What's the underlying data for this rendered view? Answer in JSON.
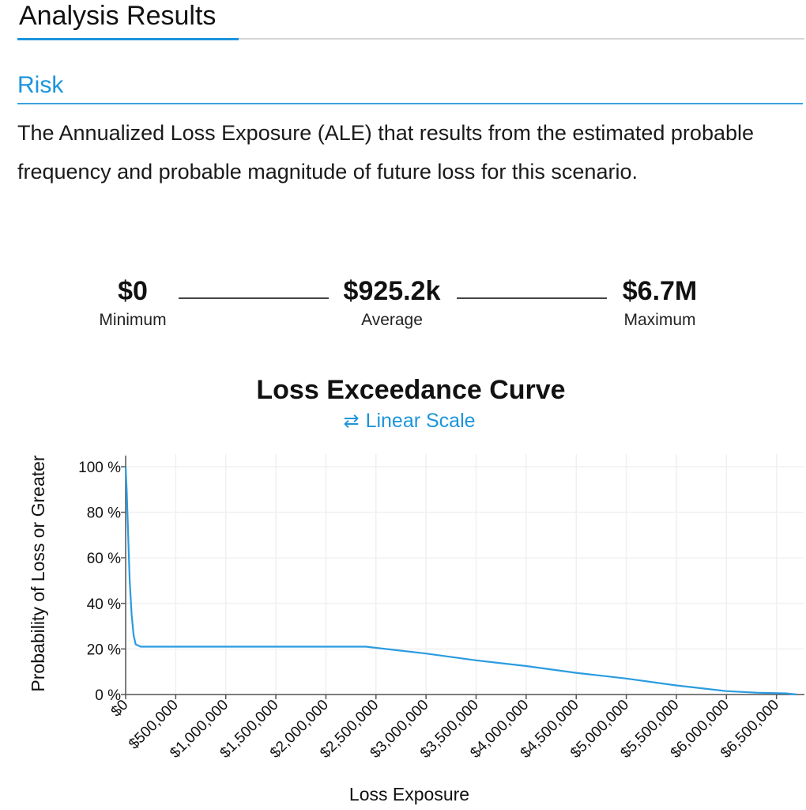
{
  "header": {
    "title": "Analysis Results"
  },
  "section": {
    "title": "Risk",
    "description": "The Annualized Loss Exposure (ALE) that results from the estimated probable frequency and probable magnitude of future loss for this scenario."
  },
  "stats": {
    "minimum": {
      "value": "$0",
      "label": "Minimum"
    },
    "average": {
      "value": "$925.2k",
      "label": "Average"
    },
    "maximum": {
      "value": "$6.7M",
      "label": "Maximum"
    }
  },
  "scale_toggle": {
    "label": "Linear Scale",
    "icon": "swap-arrows-icon"
  },
  "colors": {
    "accent": "#1c95dc",
    "line": "#2a9be0",
    "grid": "#f0f0f0"
  },
  "chart_data": {
    "type": "line",
    "title": "Loss Exceedance Curve",
    "xlabel": "Loss Exposure",
    "ylabel": "Probability of Loss or Greater",
    "xlim": [
      0,
      6700000
    ],
    "ylim": [
      0,
      100
    ],
    "x_ticks": [
      0,
      500000,
      1000000,
      1500000,
      2000000,
      2500000,
      3000000,
      3500000,
      4000000,
      4500000,
      5000000,
      5500000,
      6000000,
      6500000
    ],
    "x_tick_labels": [
      "$0",
      "$500,000",
      "$1,000,000",
      "$1,500,000",
      "$2,000,000",
      "$2,500,000",
      "$3,000,000",
      "$3,500,000",
      "$4,000,000",
      "$4,500,000",
      "$5,000,000",
      "$5,500,000",
      "$6,000,000",
      "$6,500,000"
    ],
    "y_ticks": [
      0,
      20,
      40,
      60,
      80,
      100
    ],
    "y_tick_labels": [
      "0 %",
      "20 %",
      "40 %",
      "60 %",
      "80 %",
      "100 %"
    ],
    "grid": true,
    "series": [
      {
        "name": "Loss Exceedance",
        "x": [
          0,
          10000,
          25000,
          40000,
          60000,
          80000,
          100000,
          150000,
          300000,
          1000000,
          2000000,
          2400000,
          2500000,
          3000000,
          3500000,
          4000000,
          4500000,
          5000000,
          5500000,
          6000000,
          6300000,
          6600000,
          6700000
        ],
        "y": [
          100,
          90,
          70,
          50,
          35,
          26,
          22,
          21,
          21,
          21,
          21,
          21,
          20.5,
          18,
          15,
          12.5,
          9.5,
          7,
          4,
          1.5,
          0.8,
          0.5,
          0
        ]
      }
    ]
  }
}
